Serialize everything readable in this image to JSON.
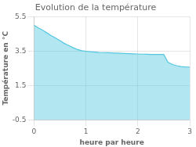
{
  "chart_data": {
    "type": "area",
    "title": "Evolution de la température",
    "xlabel": "heure par heure",
    "ylabel": "Température en °C",
    "xlim": [
      0,
      3
    ],
    "ylim": [
      -0.5,
      5.5
    ],
    "xticks": [
      0,
      1,
      2,
      3
    ],
    "yticks": [
      -0.5,
      1.5,
      3.5,
      5.5
    ],
    "x": [
      0,
      0.08,
      0.17,
      0.25,
      0.33,
      0.42,
      0.5,
      0.58,
      0.67,
      0.75,
      0.83,
      0.92,
      1.0,
      1.08,
      1.17,
      1.25,
      1.33,
      1.42,
      1.5,
      1.58,
      1.67,
      1.75,
      1.83,
      1.92,
      2.0,
      2.08,
      2.17,
      2.25,
      2.33,
      2.42,
      2.5,
      2.58,
      2.67,
      2.75,
      2.83,
      2.92,
      3.0
    ],
    "values": [
      5.0,
      4.85,
      4.7,
      4.55,
      4.4,
      4.25,
      4.1,
      3.95,
      3.82,
      3.7,
      3.6,
      3.52,
      3.48,
      3.46,
      3.44,
      3.42,
      3.41,
      3.4,
      3.39,
      3.38,
      3.37,
      3.36,
      3.35,
      3.34,
      3.33,
      3.32,
      3.31,
      3.3,
      3.3,
      3.3,
      3.3,
      2.85,
      2.72,
      2.65,
      2.6,
      2.58,
      2.57
    ],
    "color": "#55c8e0",
    "grid": true
  }
}
